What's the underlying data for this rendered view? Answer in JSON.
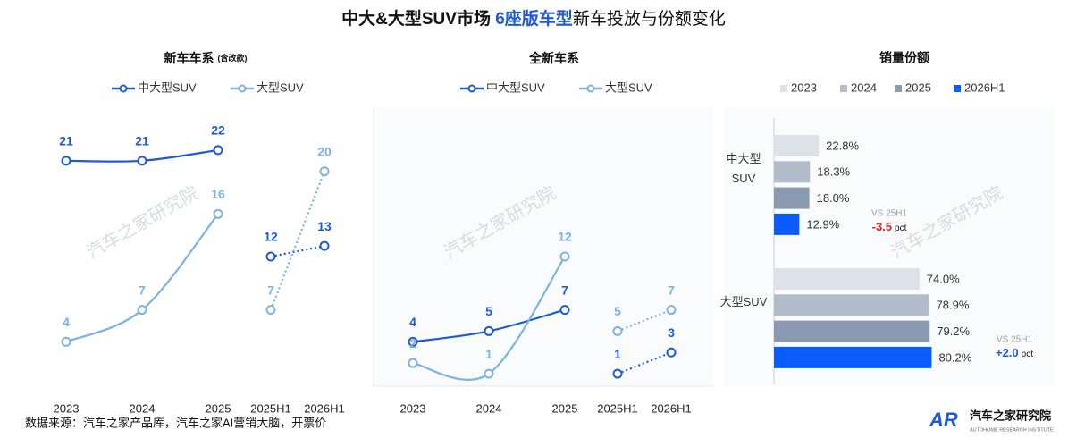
{
  "title": {
    "before": "中大&大型SUV市场 ",
    "highlight": "6座版车型",
    "after": "新车投放与份额变化"
  },
  "source": "数据来源：汽车之家产品库，汽车之家AI营销大脑，开票价",
  "watermark": "汽车之家研究院",
  "logo": {
    "mark": "AR",
    "name": "汽车之家研究院",
    "tagline": "AUTOHOME RESEARCH INSTITUTE"
  },
  "chart_data": [
    {
      "type": "line",
      "title": "新车车系",
      "subtitle": "(含改款)",
      "categories": [
        "2023",
        "2024",
        "2025",
        "2025H1",
        "2026H1"
      ],
      "ylim": [
        0,
        23
      ],
      "dashed_from": 3,
      "series": [
        {
          "name": "中大型SUV",
          "color": "#1f5ad6",
          "values": [
            21,
            21,
            22,
            12,
            13
          ]
        },
        {
          "name": "大型SUV",
          "color": "#7db3e3",
          "values": [
            4,
            7,
            16,
            7,
            20
          ]
        }
      ]
    },
    {
      "type": "line",
      "title": "全新车系",
      "categories": [
        "2023",
        "2024",
        "2025",
        "2025H1",
        "2026H1"
      ],
      "ylim": [
        0,
        23
      ],
      "dashed_from": 3,
      "series": [
        {
          "name": "中大型SUV",
          "color": "#1f5ad6",
          "values": [
            4,
            5,
            7,
            1,
            3
          ]
        },
        {
          "name": "大型SUV",
          "color": "#7db3e3",
          "values": [
            2,
            1,
            12,
            5,
            7
          ]
        }
      ]
    },
    {
      "type": "barh",
      "title": "销量份额",
      "categories": [
        "中大型 SUV",
        "大型SUV"
      ],
      "xlim": [
        0,
        100
      ],
      "series": [
        {
          "name": "2023",
          "color": "#dde1e8",
          "values": [
            22.8,
            74.0
          ],
          "value_labels": [
            "22.8%",
            "74.0%"
          ]
        },
        {
          "name": "2024",
          "color": "#b3bccb",
          "values": [
            18.3,
            78.9
          ],
          "value_labels": [
            "18.3%",
            "78.9%"
          ]
        },
        {
          "name": "2025",
          "color": "#8a9ab0",
          "values": [
            18.0,
            79.2
          ],
          "value_labels": [
            "18.0%",
            "79.2%"
          ]
        },
        {
          "name": "2026H1",
          "color": "#0a5cff",
          "values": [
            12.9,
            80.2
          ],
          "value_labels": [
            "12.9%",
            "80.2%"
          ]
        }
      ],
      "annotations": [
        {
          "label": "VS 25H1",
          "text": "-3.5",
          "unit": "pct",
          "color": "#e02020"
        },
        {
          "label": "VS 25H1",
          "text": "+2.0",
          "unit": "pct",
          "color": "#1f5ad6"
        }
      ]
    }
  ]
}
